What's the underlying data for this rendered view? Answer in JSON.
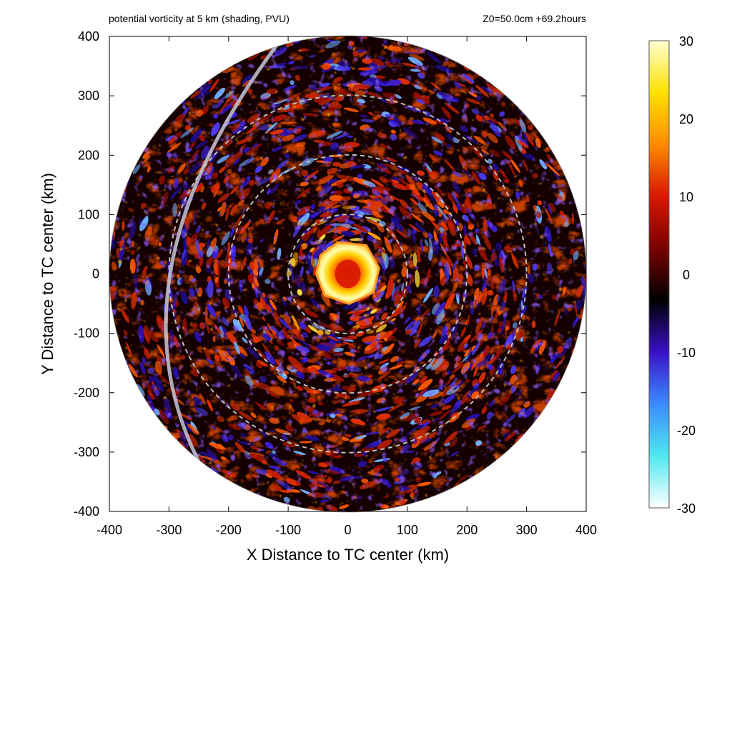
{
  "header": {
    "left_title": "potential vorticity at 5 km (shading, PVU)",
    "right_title": "Z0=50.0cm  +69.2hours"
  },
  "chart_data": {
    "type": "heatmap",
    "title": "potential vorticity at 5 km (shading, PVU)",
    "subtitle": "Z0=50.0cm  +69.2hours",
    "xlabel": "X Distance to TC center (km)",
    "ylabel": "Y Distance to TC center (km)",
    "xlim": [
      -400,
      400
    ],
    "ylim": [
      -400,
      400
    ],
    "x_ticks": [
      -400,
      -300,
      -200,
      -100,
      0,
      100,
      200,
      300,
      400
    ],
    "y_ticks": [
      -400,
      -300,
      -200,
      -100,
      0,
      100,
      200,
      300,
      400
    ],
    "domain_radius_km": 400,
    "reference_circles_km": [
      100,
      200,
      300
    ],
    "colorbar": {
      "range": [
        -30,
        30
      ],
      "ticks": [
        -30,
        -20,
        -10,
        0,
        10,
        20,
        30
      ],
      "colors": [
        "#ffffff",
        "#4fe8f0",
        "#3a8cff",
        "#3a10c8",
        "#000000",
        "#7a0000",
        "#d81800",
        "#ff8a00",
        "#ffe000",
        "#ffffd0"
      ]
    },
    "features": [
      {
        "name": "eye",
        "x": 0,
        "y": 0,
        "value_pvu": 10
      },
      {
        "name": "eyewall",
        "x": -5,
        "y": 5,
        "value_pvu": 30
      },
      {
        "name": "arc",
        "x": -325,
        "y": 0,
        "value_pvu": -30
      }
    ]
  }
}
